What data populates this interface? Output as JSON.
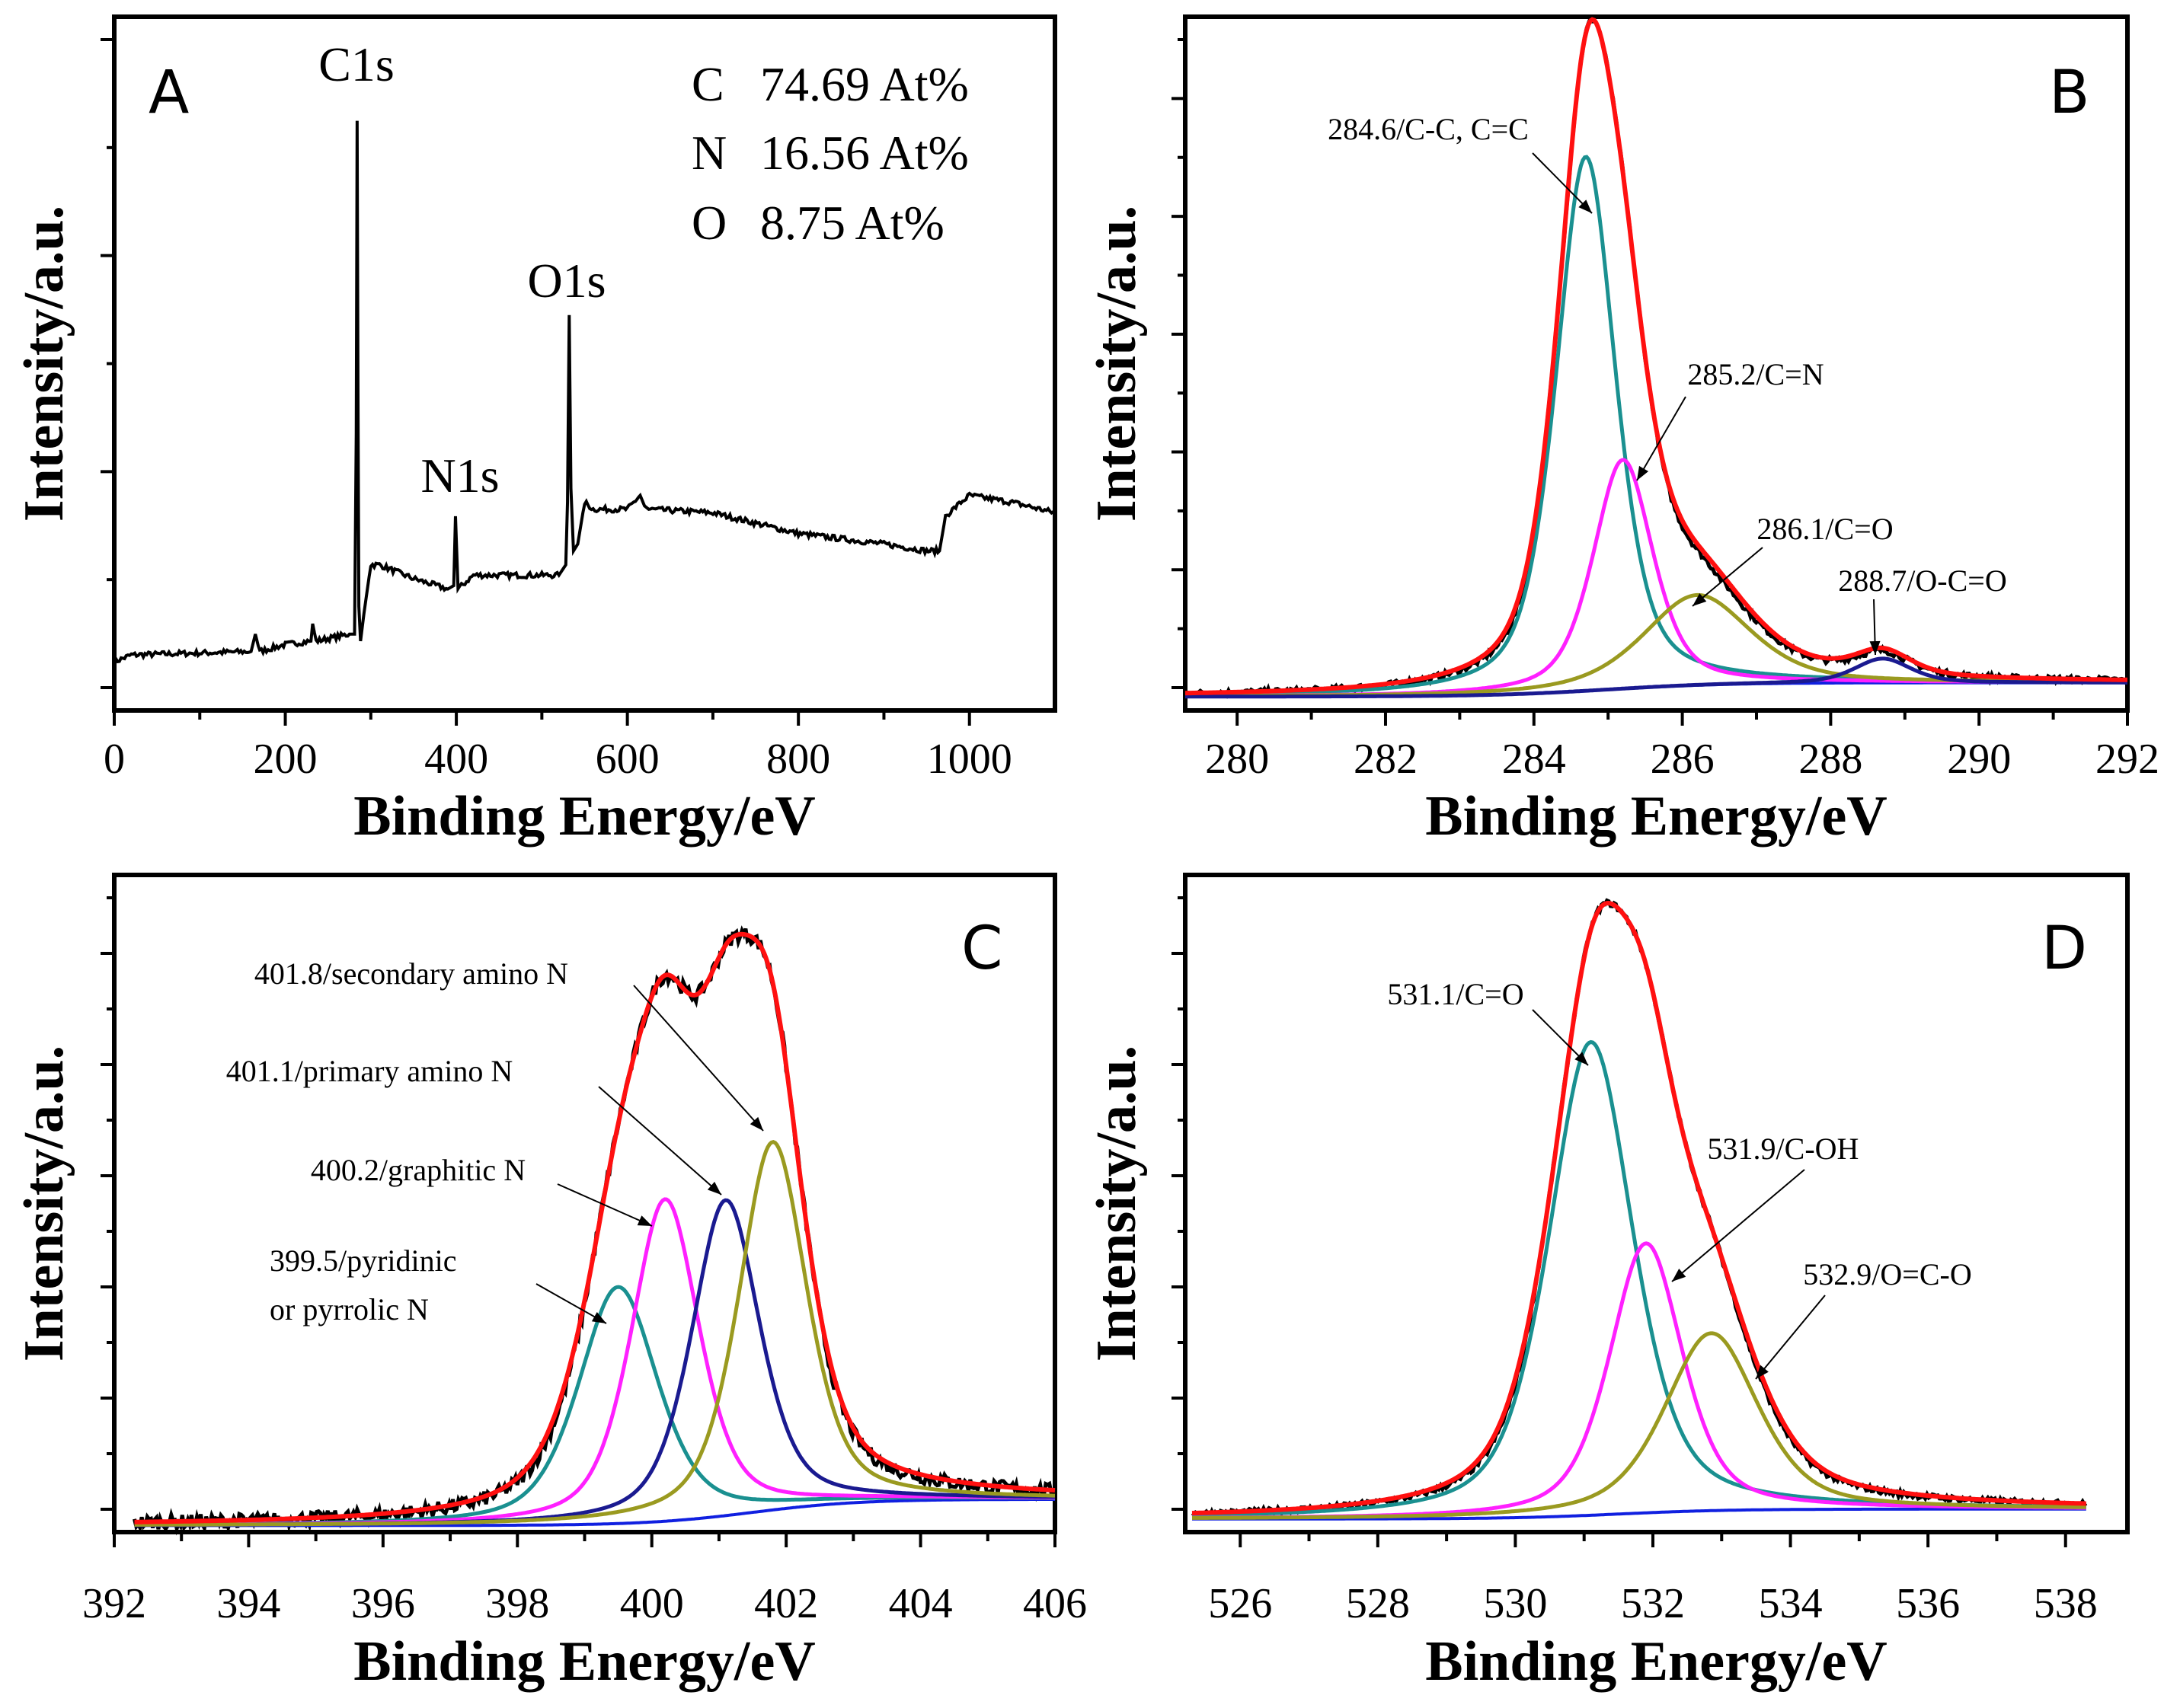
{
  "chart_data": [
    {
      "type": "line",
      "panel_label": "A",
      "xlabel": "Binding Energy/eV",
      "ylabel": "Intensity/a.u.",
      "xlim": [
        0,
        1100
      ],
      "ylim": [
        0,
        100
      ],
      "xticks": [
        "0",
        "200",
        "400",
        "600",
        "800",
        "1000"
      ],
      "xtick_values": [
        0,
        200,
        400,
        600,
        800,
        1000
      ],
      "peak_labels": [
        {
          "text": "C1s",
          "x": 284
        },
        {
          "text": "N1s",
          "x": 400
        },
        {
          "text": "O1s",
          "x": 532
        }
      ],
      "composition": [
        {
          "element": "C",
          "value": "74.69 At%"
        },
        {
          "element": "N",
          "value": "16.56 At%"
        },
        {
          "element": "O",
          "value": "8.75 At%"
        }
      ],
      "series": [
        {
          "name": "survey",
          "color": "#000000",
          "x": [
            0,
            20,
            160,
            165,
            170,
            200,
            230,
            232,
            236,
            275,
            281,
            283,
            284,
            285,
            286,
            288,
            292,
            300,
            310,
            350,
            390,
            397,
            399,
            402,
            420,
            520,
            528,
            530,
            532,
            534,
            537,
            542,
            550,
            560,
            600,
            615,
            620,
            625,
            700,
            800,
            900,
            950,
            965,
            972,
            990,
            1000,
            1050,
            1100
          ],
          "y": [
            7,
            8,
            8.5,
            11,
            8.5,
            9.5,
            10,
            12.5,
            10,
            11,
            11,
            40,
            85,
            45,
            15,
            10,
            14,
            21,
            21,
            19,
            17.5,
            18,
            28,
            17.5,
            19.5,
            19.5,
            21,
            30,
            57,
            32,
            23,
            24,
            30,
            29,
            29,
            31,
            29.5,
            29,
            28.5,
            25.5,
            24,
            23,
            23,
            28,
            30,
            31,
            30,
            28.5
          ]
        }
      ]
    },
    {
      "type": "line",
      "panel_label": "B",
      "xlabel": "Binding Energy/eV",
      "ylabel": "Intensity/a.u.",
      "xlim": [
        279.3,
        292
      ],
      "ylim": [
        0,
        100
      ],
      "xticks": [
        "280",
        "282",
        "284",
        "286",
        "288",
        "290",
        "292"
      ],
      "xtick_values": [
        280,
        282,
        284,
        286,
        288,
        290,
        292
      ],
      "data_range": [
        279.3,
        292
      ],
      "baseline": {
        "low": 2,
        "high": 4,
        "center": 285
      },
      "components": [
        {
          "label": "284.6/C-C, C=C",
          "center": 284.7,
          "height": 77,
          "fwhm": 0.95,
          "color": "#1a9090"
        },
        {
          "label": "285.2/C=N",
          "center": 285.2,
          "height": 33,
          "fwhm": 0.95,
          "color": "#ff20ff"
        },
        {
          "label": "286.1/C=O",
          "center": 286.2,
          "height": 13,
          "fwhm": 1.7,
          "color": "#9a9a20"
        },
        {
          "label": "288.7/O-C=O",
          "center": 288.7,
          "height": 3.5,
          "fwhm": 0.9,
          "color": "#1a1a90"
        }
      ],
      "envelope_color": "#ff1010",
      "baseline_color": "#1020e0",
      "data_color": "#000000"
    },
    {
      "type": "line",
      "panel_label": "C",
      "xlabel": "Binding Energy/eV",
      "ylabel": "Intensity/a.u.",
      "xlim": [
        392,
        406
      ],
      "ylim": [
        0,
        100
      ],
      "xticks": [
        "392",
        "394",
        "396",
        "398",
        "400",
        "402",
        "404",
        "406"
      ],
      "xtick_values": [
        392,
        394,
        396,
        398,
        400,
        402,
        404,
        406
      ],
      "data_range": [
        392.3,
        406
      ],
      "baseline": {
        "low": 1,
        "high": 5,
        "center": 401.5
      },
      "components": [
        {
          "label": "399.5/pyridinic|or pyrrolic N",
          "center": 399.5,
          "height": 36,
          "fwhm": 1.4,
          "color": "#1a9090"
        },
        {
          "label": "400.2/graphitic N",
          "center": 400.2,
          "height": 49,
          "fwhm": 1.2,
          "color": "#ff20ff"
        },
        {
          "label": "401.1/primary amino N",
          "center": 401.1,
          "height": 48,
          "fwhm": 1.2,
          "color": "#1a1a90"
        },
        {
          "label": "401.8/secondary amino N",
          "center": 401.8,
          "height": 56,
          "fwhm": 1.2,
          "color": "#9a9a20"
        }
      ],
      "envelope_color": "#ff1010",
      "baseline_color": "#1020e0",
      "data_color": "#000000"
    },
    {
      "type": "line",
      "panel_label": "D",
      "xlabel": "Binding Energy/eV",
      "ylabel": "Intensity/a.u.",
      "xlim": [
        525.2,
        538.9
      ],
      "ylim": [
        0,
        100
      ],
      "xticks": [
        "526",
        "528",
        "530",
        "532",
        "534",
        "536",
        "538"
      ],
      "xtick_values": [
        526,
        528,
        530,
        532,
        534,
        536,
        538
      ],
      "data_range": [
        525.3,
        538.3
      ],
      "baseline": {
        "low": 2,
        "high": 3.5,
        "center": 531.5
      },
      "components": [
        {
          "label": "531.1/C=O",
          "center": 531.1,
          "height": 72,
          "fwhm": 1.45,
          "color": "#1a9090"
        },
        {
          "label": "531.9/C-OH",
          "center": 531.9,
          "height": 41,
          "fwhm": 1.25,
          "color": "#ff20ff"
        },
        {
          "label": "532.9/O=C-O",
          "center": 532.85,
          "height": 27,
          "fwhm": 1.6,
          "color": "#9a9a20"
        }
      ],
      "envelope_color": "#ff1010",
      "baseline_color": "#1020e0",
      "data_color": "#000000"
    }
  ]
}
